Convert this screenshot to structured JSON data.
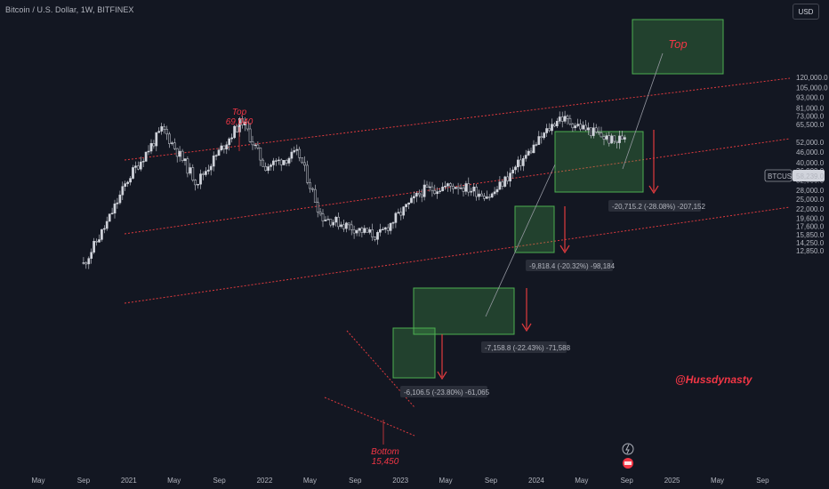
{
  "header": {
    "symbol_title": "Bitcoin / U.S. Dollar, 1W, BITFINEX",
    "currency": "USD"
  },
  "price_tag": {
    "symbol": "BTCUSD",
    "price": "58,239.0",
    "value": 58239
  },
  "watermark": "@Hussdynasty",
  "colors": {
    "background": "#131722",
    "candle": "#d1d4dc",
    "channel": "#e03a3e",
    "box_fill": "#4caf50",
    "annotation": "#f23645",
    "label_bg": "#2a2e39"
  },
  "chart_data": {
    "type": "candlestick",
    "y_scale": "log",
    "ylim": [
      12000,
      130000
    ],
    "y_ticks": [
      "120,000.0",
      "105,000.0",
      "93,000.0",
      "81,000.0",
      "73,000.0",
      "65,500.0",
      "58,239.0",
      "52,000.0",
      "46,000.0",
      "40,000.0",
      "36,000.0",
      "32,000.0",
      "28,000.0",
      "25,000.0",
      "22,000.0",
      "19,600.0",
      "17,600.0",
      "15,850.0",
      "14,250.0",
      "12,850.0"
    ],
    "x_ticks": [
      "May",
      "Sep",
      "2021",
      "May",
      "Sep",
      "2022",
      "May",
      "Sep",
      "2023",
      "May",
      "Sep",
      "2024",
      "May",
      "Sep",
      "2025",
      "May",
      "Sep"
    ],
    "series_outline": [
      {
        "t": "2020-09",
        "price": 10800
      },
      {
        "t": "2020-11",
        "price": 18000
      },
      {
        "t": "2021-01",
        "price": 33000
      },
      {
        "t": "2021-04",
        "price": 62000
      },
      {
        "t": "2021-07",
        "price": 31000
      },
      {
        "t": "2021-11",
        "price": 69040
      },
      {
        "t": "2022-01",
        "price": 38000
      },
      {
        "t": "2022-04",
        "price": 45000
      },
      {
        "t": "2022-06",
        "price": 20000
      },
      {
        "t": "2022-11",
        "price": 15450
      },
      {
        "t": "2023-03",
        "price": 28000
      },
      {
        "t": "2023-06",
        "price": 30000
      },
      {
        "t": "2023-09",
        "price": 26000
      },
      {
        "t": "2023-12",
        "price": 43000
      },
      {
        "t": "2024-03",
        "price": 72000
      },
      {
        "t": "2024-08",
        "price": 52000
      },
      {
        "t": "2024-09",
        "price": 58239
      }
    ],
    "annotations": [
      {
        "label": "Top",
        "value": "69,040"
      },
      {
        "label": "Bottom",
        "value": "15,450"
      },
      {
        "label": "Top",
        "value": ""
      }
    ],
    "measure_labels": [
      "-6,106.5 (-23.80%) -61,065",
      "-7,158.8 (-22.43%) -71,588",
      "-9,818.4 (-20.32%) -98,184",
      "-20,715.2 (-28.08%) -207,152"
    ]
  }
}
